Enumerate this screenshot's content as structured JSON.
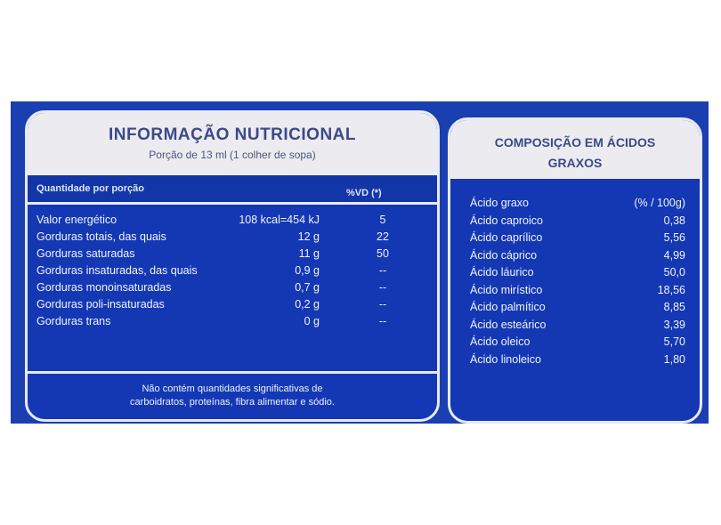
{
  "nutrition": {
    "title": "INFORMAÇÃO NUTRICIONAL",
    "serving": "Porção de 13 ml (1 colher de sopa)",
    "header_left": "Quantidade por porção",
    "header_right": "%VD (*)",
    "rows": [
      {
        "name": "Valor energético",
        "amount": "108 kcal=454 kJ",
        "dv": "5"
      },
      {
        "name": "Gorduras totais, das quais",
        "amount": "12 g",
        "dv": "22"
      },
      {
        "name": "Gorduras saturadas",
        "amount": "11 g",
        "dv": "50"
      },
      {
        "name": "Gorduras insaturadas, das quais",
        "amount": "0,9 g",
        "dv": "--"
      },
      {
        "name": "Gorduras monoinsaturadas",
        "amount": "0,7 g",
        "dv": "--"
      },
      {
        "name": "Gorduras poli-insaturadas",
        "amount": "0,2 g",
        "dv": "--"
      },
      {
        "name": "Gorduras trans",
        "amount": "0 g",
        "dv": "--"
      }
    ],
    "footnote_line1": "Não contém quantidades significativas de",
    "footnote_line2": "carboidratos, proteínas, fibra alimentar e sódio."
  },
  "fatty_acids": {
    "title_line1": "COMPOSIÇÃO EM ÁCIDOS",
    "title_line2": "GRAXOS",
    "header_name": "Ácido graxo",
    "header_value": "(% / 100g)",
    "rows": [
      {
        "name": "Ácido caproico",
        "value": "0,38"
      },
      {
        "name": "Ácido caprílico",
        "value": "5,56"
      },
      {
        "name": "Ácido cáprico",
        "value": "4,99"
      },
      {
        "name": "Ácido láurico",
        "value": "50,0"
      },
      {
        "name": "Ácido mirístico",
        "value": "18,56"
      },
      {
        "name": "Ácido palmítico",
        "value": "8,85"
      },
      {
        "name": "Ácido esteárico",
        "value": "3,39"
      },
      {
        "name": "Ácido oleico",
        "value": "5,70"
      },
      {
        "name": "Ácido linoleico",
        "value": "1,80"
      }
    ]
  },
  "colors": {
    "label_blue": "#1438b4",
    "header_white": "#ecebef",
    "title_text": "#3a4a8a"
  }
}
